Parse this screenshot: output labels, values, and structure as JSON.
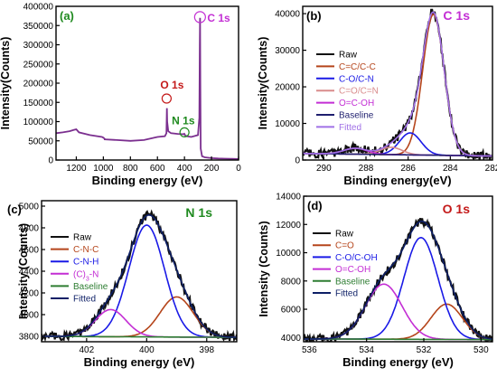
{
  "chart_data": [
    {
      "panel_label": "(a)",
      "type": "line",
      "xlabel": "Binding energy (eV)",
      "ylabel": "Intensity(Counts)",
      "xlim": [
        0,
        1350
      ],
      "x_reversed": true,
      "ylim": [
        0,
        400000
      ],
      "xticks": [
        1200,
        1000,
        800,
        600,
        400,
        200,
        0
      ],
      "yticks": [
        0,
        50000,
        100000,
        150000,
        200000,
        250000,
        300000,
        350000,
        400000
      ],
      "series": [
        {
          "color": "#7b2f8f",
          "x": [
            1350,
            1300,
            1250,
            1220,
            1200,
            1180,
            1100,
            1010,
            1000,
            990,
            990,
            900,
            800,
            700,
            600,
            545,
            533,
            530,
            528,
            520,
            500,
            450,
            400,
            405,
            400,
            395,
            380,
            350,
            300,
            290,
            287,
            285,
            283,
            280,
            270,
            250,
            200,
            150,
            100,
            50,
            0
          ],
          "y": [
            70000,
            72000,
            75000,
            78000,
            80000,
            72000,
            65000,
            60000,
            58000,
            55000,
            54000,
            52000,
            50000,
            52000,
            60000,
            62000,
            70000,
            135000,
            100000,
            75000,
            70000,
            68000,
            67000,
            70000,
            68000,
            64000,
            62000,
            60000,
            65000,
            110000,
            300000,
            370000,
            200000,
            30000,
            10000,
            7000,
            5000,
            4000,
            3500,
            3000,
            2500
          ]
        }
      ],
      "annotations": [
        {
          "text": "C 1s",
          "x": 285,
          "y": 372000,
          "color": "#c32ed4"
        },
        {
          "text": "O 1s",
          "x": 532,
          "y": 160000,
          "color": "#c41a1a"
        },
        {
          "text": "N 1s",
          "x": 400,
          "y": 72000,
          "color": "#1f8a1f"
        }
      ]
    },
    {
      "panel_label": "(b)",
      "title": "C 1s",
      "type": "line",
      "xlabel": "Binding energy(eV)",
      "ylabel": "Intensity(Counts)",
      "xlim": [
        282,
        291
      ],
      "x_reversed": true,
      "ylim": [
        0,
        42000
      ],
      "xticks": [
        290,
        288,
        286,
        284,
        282
      ],
      "yticks": [
        0,
        10000,
        20000,
        30000,
        40000
      ],
      "legend_position": "top-left",
      "series": [
        {
          "name": "Raw",
          "color": "#111111",
          "kind": "raw"
        },
        {
          "name": "C=C/C-C",
          "color": "#b5451b",
          "kind": "gauss",
          "center": 284.8,
          "amplitude": 38500,
          "fwhm": 1.2
        },
        {
          "name": "C-O/C-N",
          "color": "#1a1ae6",
          "kind": "gauss",
          "center": 285.9,
          "amplitude": 6000,
          "fwhm": 1.2
        },
        {
          "name": "C=O/C=N",
          "color": "#d98c8c",
          "kind": "gauss",
          "center": 286.8,
          "amplitude": 2000,
          "fwhm": 1.2
        },
        {
          "name": "O=C-OH",
          "color": "#c32ed4",
          "kind": "gauss",
          "center": 288.5,
          "amplitude": 1600,
          "fwhm": 1.3
        },
        {
          "name": "Baseline",
          "color": "#1e1e6e",
          "kind": "baseline",
          "base_low": 1100,
          "base_high": 1800
        },
        {
          "name": "Fitted",
          "color": "#a070e6",
          "kind": "fit"
        }
      ]
    },
    {
      "panel_label": "(c)",
      "title": "N 1s",
      "type": "line",
      "xlabel": "Binding energy (eV)",
      "ylabel": "Intensity (Counts)",
      "xlim": [
        397,
        403.5
      ],
      "x_reversed": true,
      "ylim": [
        3750,
        5050
      ],
      "xticks": [
        402,
        400,
        398
      ],
      "yticks": [
        3800,
        4000,
        4200,
        4400,
        4600,
        4800,
        5000
      ],
      "legend_position": "left",
      "series": [
        {
          "name": "Raw",
          "color": "#111111",
          "kind": "raw"
        },
        {
          "name": "C-N-C",
          "color": "#b5451b",
          "kind": "gauss",
          "center": 399.0,
          "amplitude": 370,
          "fwhm": 1.3
        },
        {
          "name": "C-N-H",
          "color": "#1a1ae6",
          "kind": "gauss",
          "center": 400.0,
          "amplitude": 1030,
          "fwhm": 1.4
        },
        {
          "name": "(C)3-N",
          "color": "#c32ed4",
          "kind": "gauss",
          "center": 401.2,
          "amplitude": 250,
          "fwhm": 1.2
        },
        {
          "name": "Baseline",
          "color": "#2e7d32",
          "kind": "baseline",
          "base_low": 3790,
          "base_high": 3800
        },
        {
          "name": "Fitted",
          "color": "#0d1f66",
          "kind": "fit"
        }
      ]
    },
    {
      "panel_label": "(d)",
      "title": "O 1s",
      "type": "line",
      "xlabel": "Binding energy (eV)",
      "ylabel": "Intensity (Counts)",
      "xlim": [
        529.6,
        536.2
      ],
      "x_reversed": true,
      "ylim": [
        3700,
        14000
      ],
      "xticks": [
        536,
        534,
        532,
        530
      ],
      "yticks": [
        4000,
        6000,
        8000,
        10000,
        12000,
        14000
      ],
      "legend_position": "top-left",
      "series": [
        {
          "name": "Raw",
          "color": "#111111",
          "kind": "raw"
        },
        {
          "name": "C=O",
          "color": "#b5451b",
          "kind": "gauss",
          "center": 531.2,
          "amplitude": 2500,
          "fwhm": 1.3
        },
        {
          "name": "C-O/C-OH",
          "color": "#1a1ae6",
          "kind": "gauss",
          "center": 532.1,
          "amplitude": 7200,
          "fwhm": 1.4
        },
        {
          "name": "O=C-OH",
          "color": "#c32ed4",
          "kind": "gauss",
          "center": 533.4,
          "amplitude": 3900,
          "fwhm": 1.5
        },
        {
          "name": "Baseline",
          "color": "#2e7d32",
          "kind": "baseline",
          "base_low": 3850,
          "base_high": 3900
        },
        {
          "name": "Fitted",
          "color": "#0d1f66",
          "kind": "fit"
        }
      ]
    }
  ]
}
